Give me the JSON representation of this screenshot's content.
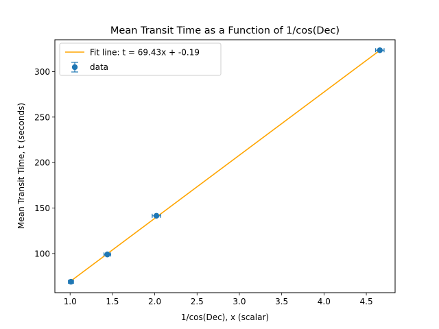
{
  "chart_data": {
    "type": "scatter",
    "title": "Mean Transit Time as a Function of 1/cos(Dec)",
    "xlabel": "1/cos(Dec), x (scalar)",
    "ylabel": "Mean Transit Time, t (seconds)",
    "xlim": [
      0.82,
      4.84
    ],
    "ylim": [
      57,
      335
    ],
    "xticks": [
      1.0,
      1.5,
      2.0,
      2.5,
      3.0,
      3.5,
      4.0,
      4.5
    ],
    "xtick_labels": [
      "1.0",
      "1.5",
      "2.0",
      "2.5",
      "3.0",
      "3.5",
      "4.0",
      "4.5"
    ],
    "yticks": [
      100,
      150,
      200,
      250,
      300
    ],
    "ytick_labels": [
      "100",
      "150",
      "200",
      "250",
      "300"
    ],
    "grid": false,
    "legend_position": "top-left",
    "series": [
      {
        "name": "data",
        "kind": "errorbar",
        "color": "#1f77b4",
        "x": [
          1.01,
          1.44,
          2.02,
          4.66
        ],
        "y": [
          69.0,
          99.0,
          141.5,
          323.5
        ],
        "xerr": [
          0.03,
          0.04,
          0.05,
          0.05
        ],
        "yerr": [
          0.8,
          0.8,
          0.8,
          0.8
        ]
      },
      {
        "name": "Fit line: t = 69.43x + -0.19",
        "kind": "line",
        "color": "#ffa500",
        "slope": 69.43,
        "intercept": -0.19,
        "x": [
          1.01,
          4.66
        ]
      }
    ]
  }
}
